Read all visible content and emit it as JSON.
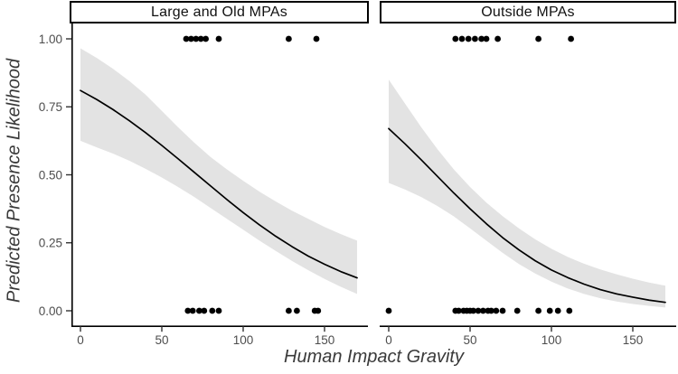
{
  "chart_data": {
    "type": "line",
    "description": "Faceted logistic regression fit with confidence ribbon and binary presence/absence points",
    "xlabel": "Human Impact Gravity",
    "ylabel": "Predicted Presence Likelihood",
    "xlim": [
      -6,
      176
    ],
    "ylim": [
      -0.06,
      1.06
    ],
    "grid": "off",
    "legend": "none",
    "x_tick_values": [
      0,
      50,
      100,
      150
    ],
    "x_tick_labels": [
      "0",
      "50",
      "100",
      "150"
    ],
    "y_tick_values": [
      0,
      0.25,
      0.5,
      0.75,
      1.0
    ],
    "y_tick_labels": [
      "0.00",
      "0.25",
      "0.50",
      "0.75",
      "1.00"
    ],
    "curve_x": [
      0,
      10,
      20,
      30,
      40,
      50,
      60,
      70,
      80,
      90,
      100,
      110,
      120,
      130,
      140,
      150,
      160,
      170
    ],
    "facets": [
      {
        "title": "Large and Old MPAs",
        "has_y_axis_line": true,
        "curve_y": [
          0.81,
          0.777,
          0.74,
          0.699,
          0.655,
          0.608,
          0.559,
          0.509,
          0.459,
          0.409,
          0.361,
          0.316,
          0.274,
          0.236,
          0.201,
          0.171,
          0.144,
          0.121
        ],
        "ribbon_upper": [
          0.965,
          0.93,
          0.89,
          0.845,
          0.795,
          0.735,
          0.675,
          0.618,
          0.565,
          0.52,
          0.478,
          0.438,
          0.402,
          0.368,
          0.338,
          0.308,
          0.282,
          0.258
        ],
        "ribbon_lower": [
          0.625,
          0.601,
          0.578,
          0.552,
          0.522,
          0.49,
          0.455,
          0.418,
          0.378,
          0.338,
          0.298,
          0.258,
          0.22,
          0.183,
          0.149,
          0.117,
          0.088,
          0.062
        ],
        "points_presence_x": [
          65,
          68,
          71,
          74,
          77,
          85,
          128,
          145
        ],
        "points_absence_x": [
          66,
          69,
          73,
          76,
          81,
          85,
          128,
          133,
          144,
          146
        ]
      },
      {
        "title": "Outside MPAs",
        "has_y_axis_line": false,
        "curve_y": [
          0.67,
          0.614,
          0.555,
          0.494,
          0.433,
          0.375,
          0.32,
          0.269,
          0.224,
          0.184,
          0.15,
          0.122,
          0.098,
          0.078,
          0.062,
          0.05,
          0.039,
          0.031
        ],
        "ribbon_upper": [
          0.85,
          0.762,
          0.675,
          0.594,
          0.52,
          0.455,
          0.398,
          0.348,
          0.303,
          0.263,
          0.228,
          0.198,
          0.173,
          0.152,
          0.134,
          0.118,
          0.104,
          0.092
        ],
        "ribbon_lower": [
          0.47,
          0.446,
          0.418,
          0.385,
          0.347,
          0.303,
          0.258,
          0.213,
          0.172,
          0.137,
          0.107,
          0.082,
          0.062,
          0.046,
          0.034,
          0.025,
          0.018,
          0.012
        ],
        "points_presence_x": [
          41,
          45,
          49,
          53,
          57,
          60,
          67,
          92,
          112
        ],
        "points_absence_x": [
          0,
          41,
          43,
          46,
          48,
          50,
          52,
          55,
          58,
          61,
          63,
          66,
          70,
          79,
          92,
          99,
          104,
          111
        ]
      }
    ],
    "styles": {
      "background": "#ffffff",
      "ribbon_color": "#e3e3e3",
      "curve_color": "#000000",
      "point_color": "#000000",
      "axis_color": "#000000",
      "tick_color": "#333333",
      "tick_label_color": "#4d4d4d",
      "axis_title_color": "#3a3a3a",
      "strip_border_color": "#000000",
      "strip_text_color": "#111111"
    }
  }
}
